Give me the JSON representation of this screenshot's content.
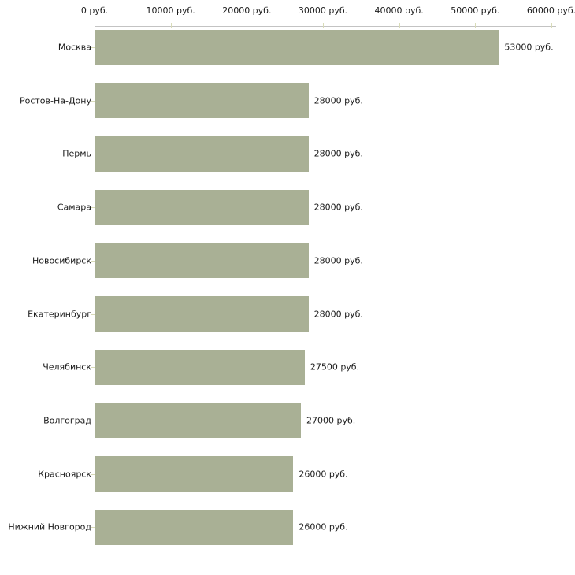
{
  "chart_data": {
    "type": "bar",
    "orientation": "horizontal",
    "title": "",
    "xlabel": "",
    "ylabel": "",
    "grid": false,
    "legend": false,
    "categories": [
      "Москва",
      "Ростов-На-Дону",
      "Пермь",
      "Самара",
      "Новосибирск",
      "Екатеринбург",
      "Челябинск",
      "Волгоград",
      "Красноярск",
      "Нижний Новгород"
    ],
    "values": [
      53000,
      28000,
      28000,
      28000,
      28000,
      28000,
      27500,
      27000,
      26000,
      26000
    ],
    "value_labels": [
      "53000 руб.",
      "28000 руб.",
      "28000 руб.",
      "28000 руб.",
      "28000 руб.",
      "28000 руб.",
      "27500 руб.",
      "27000 руб.",
      "26000 руб.",
      "26000 руб."
    ],
    "x_axis": {
      "position": "top",
      "max": 60000,
      "ticks": [
        0,
        10000,
        20000,
        30000,
        40000,
        50000,
        60000
      ],
      "tick_labels": [
        "0 руб.",
        "10000 руб.",
        "20000 руб.",
        "30000 руб.",
        "40000 руб.",
        "50000 руб.",
        "60000 руб."
      ]
    },
    "colors": {
      "bar": "#a9b095",
      "axis_line": "#c3c3c3",
      "tick_mark": "#d8dbb8",
      "text": "#1c1c1c"
    }
  }
}
